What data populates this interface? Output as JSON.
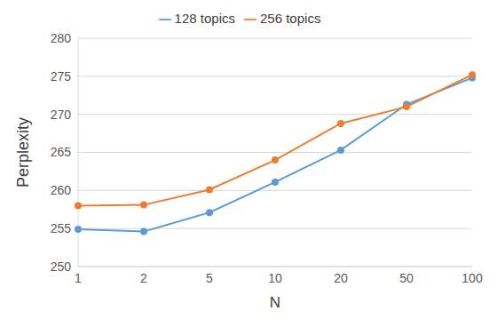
{
  "chart_data": {
    "type": "line",
    "x_label": "N",
    "y_label": "Perplexity",
    "categories": [
      "1",
      "2",
      "5",
      "10",
      "20",
      "50",
      "100"
    ],
    "series": [
      {
        "name": "128 topics",
        "color": "#5b9bd5",
        "marker": "circle",
        "line_style": "solid",
        "values": [
          254.9,
          254.6,
          257.1,
          261.1,
          265.3,
          271.3,
          274.8
        ]
      },
      {
        "name": "256 topics",
        "color": "#ed7d31",
        "marker": "circle",
        "line_style": "solid",
        "values": [
          258.0,
          258.1,
          260.1,
          264.0,
          268.8,
          271.0,
          275.2
        ]
      }
    ],
    "ylim": [
      250,
      280
    ],
    "yticks": [
      250,
      255,
      260,
      265,
      270,
      275,
      280
    ],
    "grid": true,
    "legend": "top"
  }
}
